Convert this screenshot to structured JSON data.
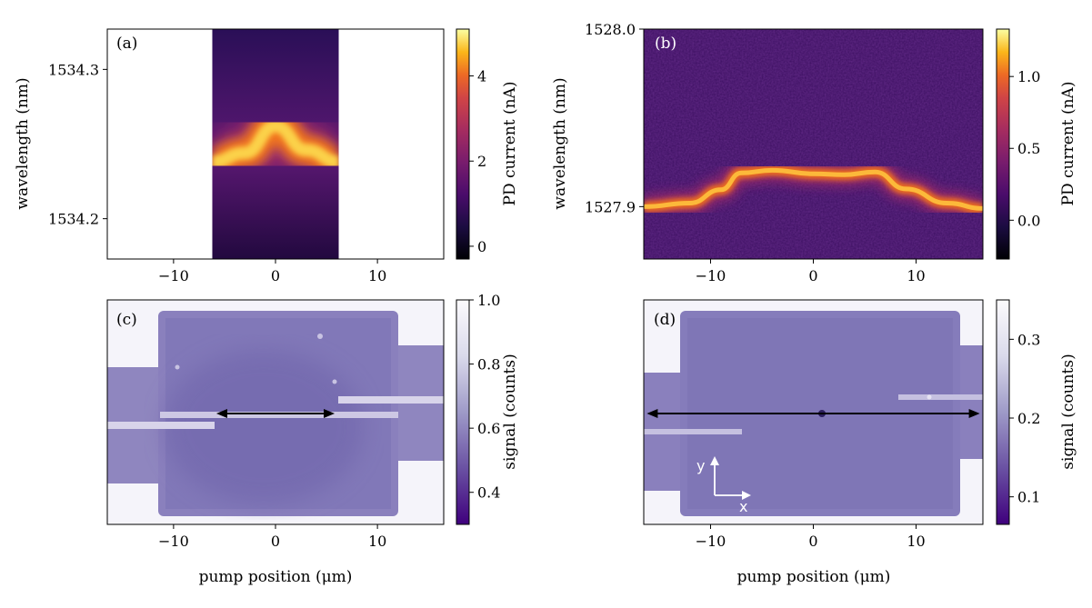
{
  "chart_data": [
    {
      "type": "heatmap",
      "panel_label": "(a)",
      "ylabel": "wavelength (nm)",
      "xlim": [
        -16.5,
        16.5
      ],
      "ylim": [
        1534.173,
        1534.327
      ],
      "xticks": [
        -10,
        0,
        10
      ],
      "yticks": [
        1534.2,
        1534.3
      ],
      "xtick_labels": [
        "−10",
        "0",
        "10"
      ],
      "ytick_labels": [
        "1534.2",
        "1534.3"
      ],
      "data_extent_x": [
        -6.2,
        6.2
      ],
      "peak_wavelength": [
        {
          "x": -6.2,
          "y": 1534.238
        },
        {
          "x": -3,
          "y": 1534.244
        },
        {
          "x": 0,
          "y": 1534.262
        },
        {
          "x": 3,
          "y": 1534.246
        },
        {
          "x": 6.2,
          "y": 1534.238
        }
      ],
      "colorbar": {
        "label": "PD current (nA)",
        "colormap": "inferno",
        "range": [
          -0.3,
          5.1
        ],
        "ticks": [
          0,
          2,
          4
        ],
        "tick_labels": [
          "0",
          "2",
          "4"
        ]
      }
    },
    {
      "type": "heatmap",
      "panel_label": "(b)",
      "ylabel": "wavelength (nm)",
      "xlim": [
        -16.5,
        16.5
      ],
      "ylim": [
        1527.8705,
        1528.0
      ],
      "xticks": [
        -10,
        0,
        10
      ],
      "yticks": [
        1527.9,
        1528.0
      ],
      "xtick_labels": [
        "−10",
        "0",
        "10"
      ],
      "ytick_labels": [
        "1527.9",
        "1528.0"
      ],
      "peak_wavelength": [
        {
          "x": -16.5,
          "y": 1527.9
        },
        {
          "x": -12,
          "y": 1527.902
        },
        {
          "x": -9,
          "y": 1527.9095
        },
        {
          "x": -7,
          "y": 1527.919
        },
        {
          "x": -4,
          "y": 1527.9205
        },
        {
          "x": 0,
          "y": 1527.9185
        },
        {
          "x": 3,
          "y": 1527.918
        },
        {
          "x": 6,
          "y": 1527.9195
        },
        {
          "x": 9,
          "y": 1527.91
        },
        {
          "x": 13,
          "y": 1527.902
        },
        {
          "x": 16.5,
          "y": 1527.899
        }
      ],
      "colorbar": {
        "label": "PD current (nA)",
        "colormap": "inferno",
        "range": [
          -0.27,
          1.33
        ],
        "ticks": [
          0.0,
          0.5,
          1.0
        ],
        "tick_labels": [
          "0.0",
          "0.5",
          "1.0"
        ]
      }
    },
    {
      "type": "heatmap",
      "panel_label": "(c)",
      "xlabel": "pump position (μm)",
      "xlim": [
        -16.5,
        16.5
      ],
      "xticks": [
        -10,
        0,
        10
      ],
      "xtick_labels": [
        "−10",
        "0",
        "10"
      ],
      "arrow_x": [
        -5.8,
        5.8
      ],
      "colorbar": {
        "label": "signal (counts)",
        "colormap": "purples",
        "range": [
          0.3,
          1.0
        ],
        "ticks": [
          0.4,
          0.6,
          0.8,
          1.0
        ],
        "tick_labels": [
          "0.4",
          "0.6",
          "0.8",
          "1.0"
        ]
      }
    },
    {
      "type": "heatmap",
      "panel_label": "(d)",
      "xlabel": "pump position (μm)",
      "xlim": [
        -16.5,
        16.5
      ],
      "xticks": [
        -10,
        0,
        10
      ],
      "xtick_labels": [
        "−10",
        "0",
        "10"
      ],
      "arrow_x": [
        -16.2,
        16.2
      ],
      "axis_glyph": {
        "x": "x",
        "y": "y"
      },
      "colorbar": {
        "label": "signal (counts)",
        "colormap": "purples",
        "range": [
          0.065,
          0.35
        ],
        "ticks": [
          0.1,
          0.2,
          0.3
        ],
        "tick_labels": [
          "0.1",
          "0.2",
          "0.3"
        ]
      }
    }
  ]
}
